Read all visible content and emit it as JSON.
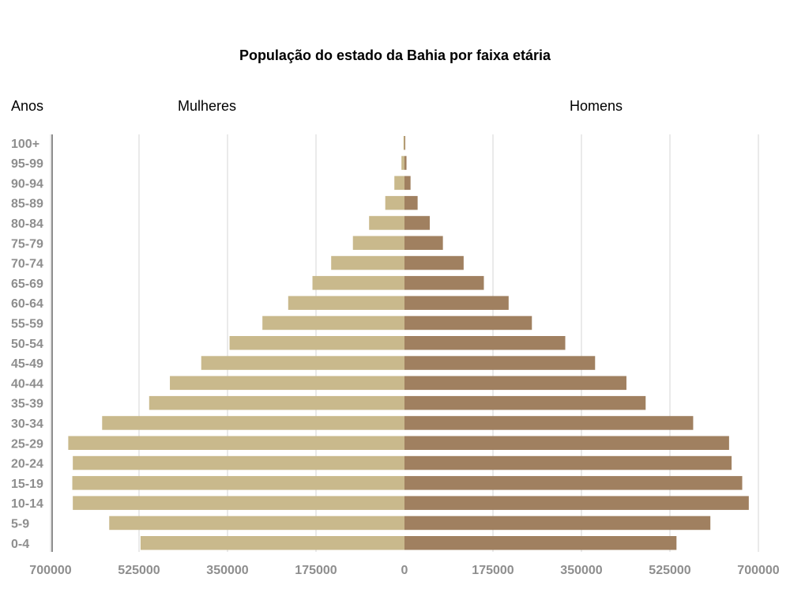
{
  "chart_data": {
    "type": "bar",
    "orientation": "horizontal",
    "layout": "population-pyramid",
    "title": "População do estado da Bahia por faixa etária",
    "ylabel": "Anos",
    "left_label": "Mulheres",
    "right_label": "Homens",
    "categories": [
      "100+",
      "95-99",
      "90-94",
      "85-89",
      "80-84",
      "75-79",
      "70-74",
      "65-69",
      "60-64",
      "55-59",
      "50-54",
      "45-49",
      "40-44",
      "35-39",
      "30-34",
      "25-29",
      "20-24",
      "15-19",
      "10-14",
      "5-9",
      "0-4"
    ],
    "series": [
      {
        "name": "Mulheres",
        "side": "left",
        "color": "#c9b98c",
        "values": [
          2000,
          6000,
          20000,
          38000,
          70000,
          102000,
          145000,
          182000,
          230000,
          281000,
          346000,
          402000,
          464000,
          505000,
          598000,
          665000,
          656000,
          657000,
          656000,
          584000,
          522000
        ]
      },
      {
        "name": "Homens",
        "side": "right",
        "color": "#a08060",
        "values": [
          1000,
          4000,
          12000,
          26000,
          50000,
          76000,
          117000,
          157000,
          206000,
          252000,
          318000,
          377000,
          439000,
          477000,
          571000,
          642000,
          647000,
          668000,
          681000,
          605000,
          538000
        ]
      }
    ],
    "x_ticks": [
      "700000",
      "525000",
      "350000",
      "175000",
      "0",
      "175000",
      "350000",
      "525000",
      "700000"
    ],
    "xlim": [
      -700000,
      700000
    ],
    "grid": true
  }
}
